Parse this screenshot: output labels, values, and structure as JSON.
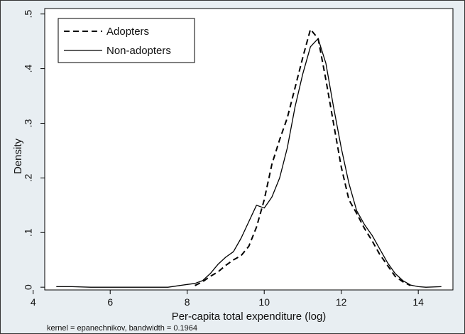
{
  "chart_data": {
    "type": "line",
    "title": "",
    "xlabel": "Per-capita total expenditure  (log)",
    "ylabel": "Density",
    "note": "kernel = epanechnikov, bandwidth = 0.1964",
    "xlim": [
      4.3,
      14.9
    ],
    "ylim": [
      -0.005,
      0.51
    ],
    "xticks": [
      4,
      6,
      8,
      10,
      12,
      14
    ],
    "yticks": [
      0,
      0.1,
      0.2,
      0.3,
      0.4,
      0.5
    ],
    "ytick_labels": [
      "0",
      ".1",
      ".2",
      ".3",
      ".4",
      ".5"
    ],
    "grid": false,
    "legend_position": "top-left",
    "series": [
      {
        "name": "Adopters",
        "style": "dashed",
        "color": "#000000",
        "x": [
          8.2,
          8.4,
          8.6,
          8.8,
          9.0,
          9.2,
          9.4,
          9.6,
          9.8,
          10.0,
          10.2,
          10.4,
          10.6,
          10.8,
          11.0,
          11.2,
          11.4,
          11.6,
          11.8,
          12.0,
          12.2,
          12.4,
          12.6,
          12.8,
          13.0,
          13.2,
          13.4,
          13.6,
          13.8
        ],
        "y": [
          0.003,
          0.01,
          0.02,
          0.028,
          0.04,
          0.05,
          0.058,
          0.075,
          0.11,
          0.16,
          0.225,
          0.27,
          0.31,
          0.365,
          0.42,
          0.472,
          0.455,
          0.38,
          0.3,
          0.22,
          0.16,
          0.135,
          0.108,
          0.085,
          0.06,
          0.04,
          0.02,
          0.01,
          0.003
        ]
      },
      {
        "name": "Non-adopters",
        "style": "solid",
        "color": "#000000",
        "x": [
          4.6,
          5.0,
          5.5,
          6.0,
          6.5,
          7.0,
          7.5,
          7.8,
          8.0,
          8.2,
          8.4,
          8.6,
          8.8,
          9.0,
          9.2,
          9.4,
          9.6,
          9.8,
          10.0,
          10.2,
          10.4,
          10.6,
          10.8,
          11.0,
          11.2,
          11.4,
          11.6,
          11.8,
          12.0,
          12.2,
          12.4,
          12.6,
          12.8,
          13.0,
          13.2,
          13.4,
          13.6,
          13.8,
          14.0,
          14.2,
          14.6
        ],
        "y": [
          0.001,
          0.001,
          0.0,
          0.0,
          0.0,
          0.0,
          0.0,
          0.003,
          0.005,
          0.007,
          0.012,
          0.025,
          0.042,
          0.055,
          0.065,
          0.09,
          0.12,
          0.15,
          0.145,
          0.165,
          0.2,
          0.255,
          0.33,
          0.39,
          0.44,
          0.455,
          0.41,
          0.33,
          0.255,
          0.19,
          0.14,
          0.115,
          0.095,
          0.07,
          0.045,
          0.025,
          0.012,
          0.004,
          0.001,
          0.0,
          0.001
        ]
      }
    ]
  }
}
